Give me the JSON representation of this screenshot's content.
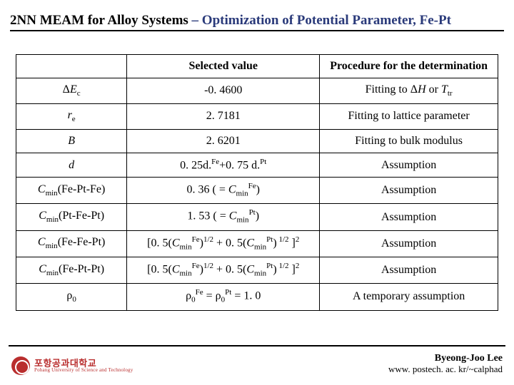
{
  "title": {
    "main": "2NN MEAM for Alloy Systems",
    "sep": " – ",
    "sub": "Optimization of Potential Parameter, Fe-Pt"
  },
  "table": {
    "headers": {
      "col1": "",
      "col2": "Selected value",
      "col3": "Procedure for the determination"
    },
    "rows": [
      {
        "param_html": "Δ<span class='ital'>E</span><sub>c</sub>",
        "value_html": "-0. 4600",
        "proc_html": "Fitting to Δ<span class='ital'>H</span> or <span class='ital'>T</span><sub>tr</sub>"
      },
      {
        "param_html": "<span class='ital'>r</span><sub>e</sub>",
        "value_html": "2. 7181",
        "proc_html": "Fitting to lattice parameter"
      },
      {
        "param_html": "<span class='ital'>B</span>",
        "value_html": "2. 6201",
        "proc_html": "Fitting to bulk modulus"
      },
      {
        "param_html": "<span class='ital'>d</span>",
        "value_html": "0. 25d.<sup>Fe</sup>+0. 75 d.<sup>Pt</sup>",
        "proc_html": "Assumption"
      },
      {
        "param_html": "<span class='ital'>C</span><sub>min</sub>(Fe-Pt-Fe)",
        "value_html": "0. 36 ( = <span class='ital'>C</span><sub>min</sub><sup>Fe</sup>)",
        "proc_html": "Assumption"
      },
      {
        "param_html": "<span class='ital'>C</span><sub>min</sub>(Pt-Fe-Pt)",
        "value_html": "1. 53 ( = <span class='ital'>C</span><sub>min</sub><sup>Pt</sup>)",
        "proc_html": "Assumption"
      },
      {
        "param_html": "<span class='ital'>C</span><sub>min</sub>(Fe-Fe-Pt)",
        "value_html": "[0. 5(<span class='ital'>C</span><sub>min</sub><sup>Fe</sup>)<sup>1/2</sup> + 0. 5(<span class='ital'>C</span><sub>min</sub><sup>Pt</sup>)<sup> 1/2</sup> ]<sup>2</sup>",
        "proc_html": "Assumption"
      },
      {
        "param_html": "<span class='ital'>C</span><sub>min</sub>(Fe-Pt-Pt)",
        "value_html": "[0. 5(<span class='ital'>C</span><sub>min</sub><sup>Fe</sup>)<sup>1/2</sup> + 0. 5(<span class='ital'>C</span><sub>min</sub><sup>Pt</sup>)<sup> 1/2</sup> ]<sup>2</sup>",
        "proc_html": "Assumption"
      },
      {
        "param_html": "ρ<sub>0</sub>",
        "value_html": "ρ<sub>0</sub><sup>Fe</sup> = ρ<sub>0</sub><sup>Pt</sup> = 1. 0",
        "proc_html": "A temporary assumption"
      }
    ]
  },
  "footer": {
    "name": "Byeong-Joo Lee",
    "url": "www. postech. ac. kr/~calphad"
  },
  "logo": {
    "kr": "포항공과대학교",
    "en": "Pohang University of Science and Technology"
  },
  "colors": {
    "title_sub": "#2a3a7a",
    "logo": "#b92e2e"
  }
}
